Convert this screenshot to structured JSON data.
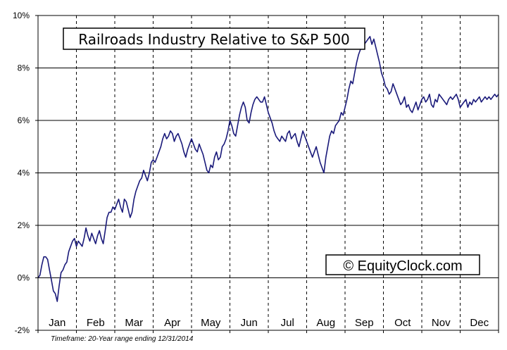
{
  "chart_data": {
    "type": "line",
    "title": "Railroads Industry Relative to S&P 500",
    "watermark": "© EquityClock.com",
    "footnote": "Timeframe: 20-Year range ending 12/31/2014",
    "xlabel": "",
    "ylabel": "",
    "categories": [
      "Jan",
      "Feb",
      "Mar",
      "Apr",
      "May",
      "Jun",
      "Jul",
      "Aug",
      "Sep",
      "Oct",
      "Nov",
      "Dec"
    ],
    "ylim": [
      -2,
      10
    ],
    "yticks": [
      -2,
      0,
      2,
      4,
      6,
      8,
      10
    ],
    "ytick_labels": [
      "-2%",
      "0%",
      "2%",
      "4%",
      "6%",
      "8%",
      "10%"
    ],
    "grid": {
      "horizontal": "solid",
      "vertical": "dashed"
    },
    "line_color": "#1a1a7a",
    "series": [
      {
        "name": "",
        "x": [
          0.0,
          0.05,
          0.1,
          0.15,
          0.2,
          0.25,
          0.3,
          0.35,
          0.4,
          0.45,
          0.5,
          0.55,
          0.6,
          0.65,
          0.7,
          0.75,
          0.8,
          0.85,
          0.9,
          0.95,
          1.0,
          1.05,
          1.1,
          1.15,
          1.2,
          1.25,
          1.3,
          1.35,
          1.4,
          1.45,
          1.5,
          1.55,
          1.6,
          1.65,
          1.7,
          1.75,
          1.8,
          1.85,
          1.9,
          1.95,
          2.0,
          2.05,
          2.1,
          2.15,
          2.2,
          2.25,
          2.3,
          2.35,
          2.4,
          2.45,
          2.5,
          2.55,
          2.6,
          2.65,
          2.7,
          2.75,
          2.8,
          2.85,
          2.9,
          2.95,
          3.0,
          3.05,
          3.1,
          3.15,
          3.2,
          3.25,
          3.3,
          3.35,
          3.4,
          3.45,
          3.5,
          3.55,
          3.6,
          3.65,
          3.7,
          3.75,
          3.8,
          3.85,
          3.9,
          3.95,
          4.0,
          4.05,
          4.1,
          4.15,
          4.2,
          4.25,
          4.3,
          4.35,
          4.4,
          4.45,
          4.5,
          4.55,
          4.6,
          4.65,
          4.7,
          4.75,
          4.8,
          4.85,
          4.9,
          4.95,
          5.0,
          5.05,
          5.1,
          5.15,
          5.2,
          5.25,
          5.3,
          5.35,
          5.4,
          5.45,
          5.5,
          5.55,
          5.6,
          5.65,
          5.7,
          5.75,
          5.8,
          5.85,
          5.9,
          5.95,
          6.0,
          6.05,
          6.1,
          6.15,
          6.2,
          6.25,
          6.3,
          6.35,
          6.4,
          6.45,
          6.5,
          6.55,
          6.6,
          6.65,
          6.7,
          6.75,
          6.8,
          6.85,
          6.9,
          6.95,
          7.0,
          7.05,
          7.1,
          7.15,
          7.2,
          7.25,
          7.3,
          7.35,
          7.4,
          7.45,
          7.5,
          7.55,
          7.6,
          7.65,
          7.7,
          7.75,
          7.8,
          7.85,
          7.9,
          7.95,
          8.0,
          8.05,
          8.1,
          8.15,
          8.2,
          8.25,
          8.3,
          8.35,
          8.4,
          8.45,
          8.5,
          8.55,
          8.6,
          8.65,
          8.7,
          8.75,
          8.8,
          8.85,
          8.9,
          8.95,
          9.0,
          9.05,
          9.1,
          9.15,
          9.2,
          9.25,
          9.3,
          9.35,
          9.4,
          9.45,
          9.5,
          9.55,
          9.6,
          9.65,
          9.7,
          9.75,
          9.8,
          9.85,
          9.9,
          9.95,
          10.0,
          10.05,
          10.1,
          10.15,
          10.2,
          10.25,
          10.3,
          10.35,
          10.4,
          10.45,
          10.5,
          10.55,
          10.6,
          10.65,
          10.7,
          10.75,
          10.8,
          10.85,
          10.9,
          10.95,
          11.0,
          11.05,
          11.1,
          11.15,
          11.2,
          11.25,
          11.3,
          11.35,
          11.4,
          11.45,
          11.5,
          11.55,
          11.6,
          11.65,
          11.7,
          11.75,
          11.8,
          11.85,
          11.9,
          11.95,
          12.0
        ],
        "y": [
          0.0,
          0.1,
          0.5,
          0.8,
          0.8,
          0.7,
          0.3,
          -0.1,
          -0.5,
          -0.6,
          -0.9,
          -0.3,
          0.2,
          0.3,
          0.5,
          0.6,
          1.0,
          1.2,
          1.4,
          1.5,
          1.2,
          1.4,
          1.3,
          1.2,
          1.5,
          1.9,
          1.6,
          1.4,
          1.7,
          1.5,
          1.3,
          1.6,
          1.8,
          1.5,
          1.3,
          1.8,
          2.3,
          2.5,
          2.5,
          2.7,
          2.6,
          2.8,
          3.0,
          2.7,
          2.5,
          3.0,
          2.9,
          2.6,
          2.3,
          2.5,
          3.0,
          3.3,
          3.5,
          3.7,
          3.8,
          4.1,
          3.9,
          3.7,
          4.0,
          4.4,
          4.5,
          4.4,
          4.6,
          4.8,
          5.0,
          5.3,
          5.5,
          5.3,
          5.4,
          5.6,
          5.5,
          5.2,
          5.4,
          5.5,
          5.3,
          5.1,
          4.8,
          4.6,
          4.9,
          5.1,
          5.3,
          5.1,
          4.9,
          4.8,
          5.1,
          4.9,
          4.7,
          4.4,
          4.1,
          4.0,
          4.3,
          4.2,
          4.6,
          4.8,
          4.5,
          4.6,
          5.0,
          5.1,
          5.3,
          5.6,
          6.0,
          5.8,
          5.5,
          5.4,
          5.8,
          6.2,
          6.5,
          6.7,
          6.5,
          6.0,
          5.9,
          6.3,
          6.6,
          6.8,
          6.9,
          6.8,
          6.7,
          6.7,
          6.9,
          6.6,
          6.3,
          6.1,
          5.9,
          5.6,
          5.4,
          5.3,
          5.2,
          5.4,
          5.3,
          5.2,
          5.5,
          5.6,
          5.3,
          5.4,
          5.5,
          5.2,
          5.0,
          5.3,
          5.6,
          5.4,
          5.2,
          5.0,
          4.8,
          4.6,
          4.8,
          5.0,
          4.7,
          4.4,
          4.2,
          4.0,
          4.6,
          5.0,
          5.4,
          5.6,
          5.5,
          5.8,
          5.9,
          6.0,
          6.3,
          6.2,
          6.5,
          6.8,
          7.2,
          7.5,
          7.4,
          7.8,
          8.2,
          8.5,
          8.7,
          8.8,
          8.9,
          9.0,
          9.1,
          9.2,
          8.9,
          9.1,
          8.8,
          8.5,
          8.2,
          7.8,
          7.6,
          7.3,
          7.2,
          7.0,
          7.1,
          7.4,
          7.2,
          7.0,
          6.8,
          6.6,
          6.7,
          6.9,
          6.5,
          6.6,
          6.4,
          6.3,
          6.5,
          6.7,
          6.4,
          6.6,
          6.8,
          6.9,
          6.7,
          6.8,
          7.0,
          6.6,
          6.5,
          6.8,
          6.7,
          7.0,
          6.9,
          6.8,
          6.7,
          6.6,
          6.8,
          6.9,
          6.8,
          6.9,
          7.0,
          6.8,
          6.5,
          6.6,
          6.7,
          6.8,
          6.5,
          6.7,
          6.6,
          6.8,
          6.7,
          6.8,
          6.9,
          6.7,
          6.8,
          6.9,
          6.8,
          6.9,
          6.8,
          6.9,
          7.0,
          6.9,
          7.0
        ]
      }
    ]
  }
}
